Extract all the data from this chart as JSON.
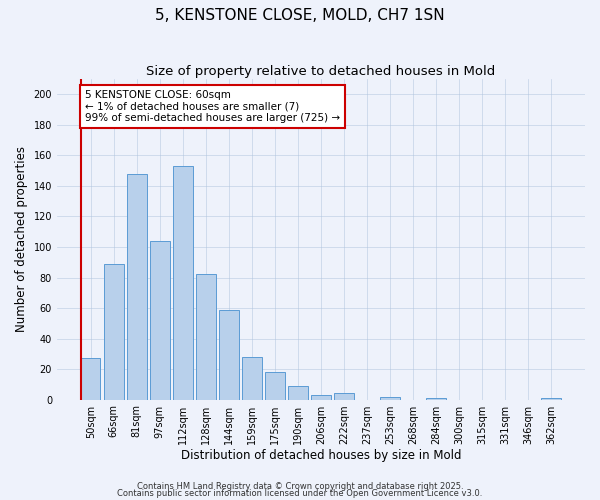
{
  "title": "5, KENSTONE CLOSE, MOLD, CH7 1SN",
  "subtitle": "Size of property relative to detached houses in Mold",
  "xlabel": "Distribution of detached houses by size in Mold",
  "ylabel": "Number of detached properties",
  "bar_labels": [
    "50sqm",
    "66sqm",
    "81sqm",
    "97sqm",
    "112sqm",
    "128sqm",
    "144sqm",
    "159sqm",
    "175sqm",
    "190sqm",
    "206sqm",
    "222sqm",
    "237sqm",
    "253sqm",
    "268sqm",
    "284sqm",
    "300sqm",
    "315sqm",
    "331sqm",
    "346sqm",
    "362sqm"
  ],
  "bar_values": [
    27,
    89,
    148,
    104,
    153,
    82,
    59,
    28,
    18,
    9,
    3,
    4,
    0,
    2,
    0,
    1,
    0,
    0,
    0,
    0,
    1
  ],
  "bar_color": "#b8d0eb",
  "bar_edge_color": "#5b9bd5",
  "ylim": [
    0,
    210
  ],
  "yticks": [
    0,
    20,
    40,
    60,
    80,
    100,
    120,
    140,
    160,
    180,
    200
  ],
  "annotation_text": "5 KENSTONE CLOSE: 60sqm\n← 1% of detached houses are smaller (7)\n99% of semi-detached houses are larger (725) →",
  "annotation_box_color": "#ffffff",
  "annotation_box_edge_color": "#cc0000",
  "red_line_color": "#cc0000",
  "footnote1": "Contains HM Land Registry data © Crown copyright and database right 2025.",
  "footnote2": "Contains public sector information licensed under the Open Government Licence v3.0.",
  "background_color": "#eef2fb",
  "grid_color": "#b0c4de",
  "title_fontsize": 11,
  "subtitle_fontsize": 9.5,
  "axis_label_fontsize": 8.5,
  "tick_fontsize": 7,
  "annotation_fontsize": 7.5,
  "footnote_fontsize": 6
}
